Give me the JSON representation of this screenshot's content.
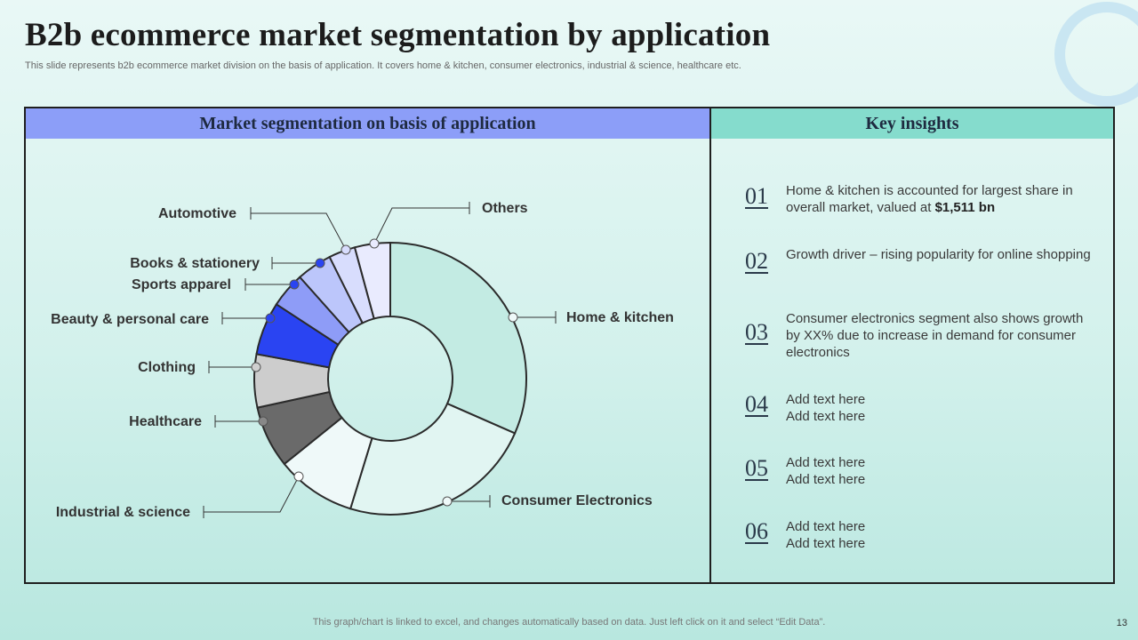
{
  "slide": {
    "title": "B2b ecommerce market segmentation by application",
    "subtitle": "This slide represents b2b ecommerce market division on the basis of application. It covers home & kitchen, consumer electronics, industrial & science, healthcare etc.",
    "left_header": "Market segmentation on basis of application",
    "right_header": "Key insights",
    "footer": "This graph/chart is linked to excel,  and changes automatically based on data. Just left click on it and select “Edit Data”.",
    "page_number": "13"
  },
  "insights": [
    {
      "num": "01",
      "text": "Home & kitchen is accounted for largest share in overall market, valued at ",
      "bold": "$1,511 bn"
    },
    {
      "num": "02",
      "text": "Growth driver – rising popularity for online shopping",
      "bold": ""
    },
    {
      "num": "03",
      "text": "Consumer electronics segment also shows growth by XX% due to increase in demand for consumer electronics",
      "bold": ""
    },
    {
      "num": "04",
      "text": "Add text here\nAdd text here",
      "bold": ""
    },
    {
      "num": "05",
      "text": "Add text here\nAdd text here",
      "bold": ""
    },
    {
      "num": "06",
      "text": "Add text here\nAdd text here",
      "bold": ""
    }
  ],
  "chart_data": {
    "type": "pie",
    "donut": true,
    "categories": [
      "Home & kitchen",
      "Consumer Electronics",
      "Industrial & science",
      "Healthcare",
      "Clothing",
      "Beauty & personal care",
      "Sports apparel",
      "Books & stationery",
      "Automotive",
      "Others"
    ],
    "values": [
      30,
      22,
      9,
      7,
      6,
      6,
      4,
      4,
      3,
      4
    ],
    "colors": [
      "#c3ebe3",
      "#e1f5f2",
      "#eff9f9",
      "#6a6a6a",
      "#cdcdcd",
      "#2a44f2",
      "#8e9cf7",
      "#bcc6fb",
      "#d8ddfd",
      "#e9ebfe"
    ],
    "marker_colors": [
      "#eff9f9",
      "#eff9f9",
      "#ffffff",
      "#888888",
      "#cfcfcf",
      "#2a44f2",
      "#2a44f2",
      "#2a44f2",
      "#d8ddfd",
      "#e9ebfe"
    ]
  }
}
